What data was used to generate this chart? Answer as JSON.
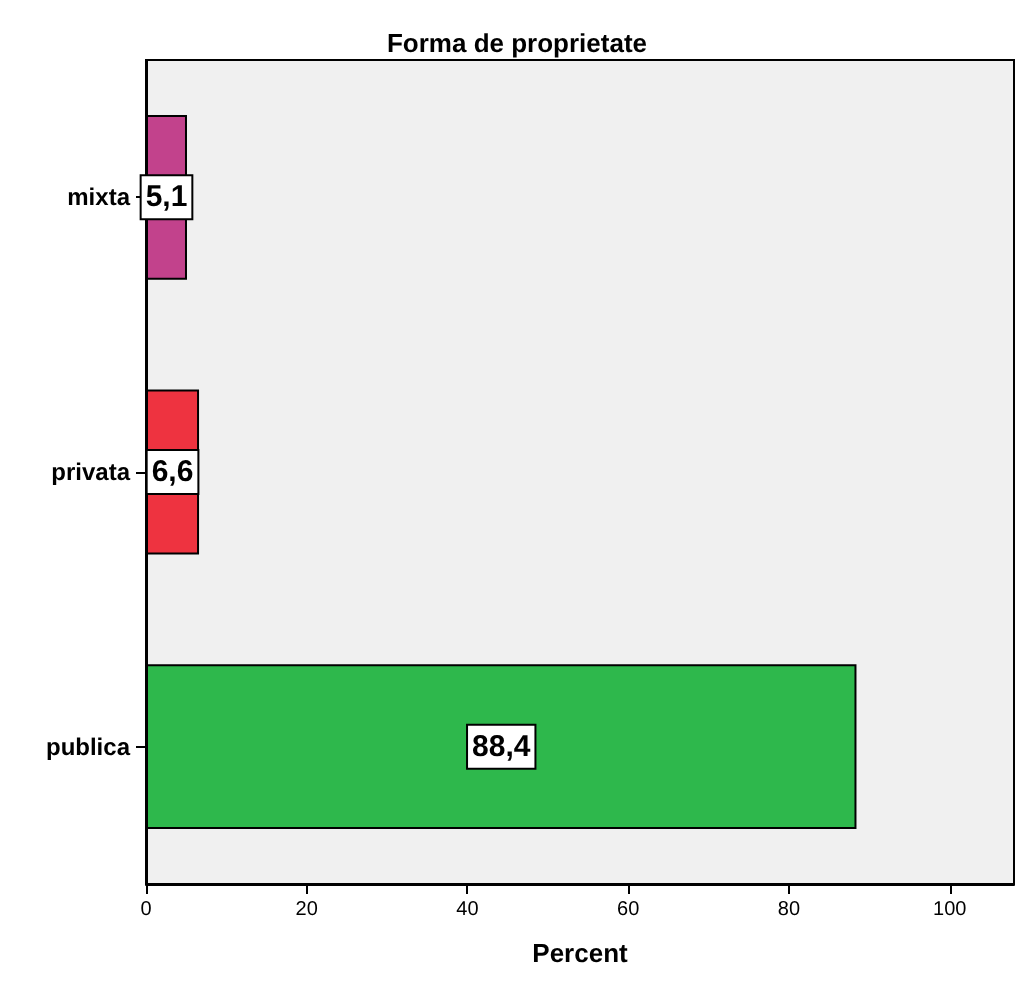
{
  "chart_data": {
    "type": "bar",
    "orientation": "horizontal",
    "title": "Forma de proprietate",
    "xlabel": "Percent",
    "categories": [
      "mixta",
      "privata",
      "publica"
    ],
    "values": [
      5.1,
      6.6,
      88.4
    ],
    "colors": [
      "#c2428c",
      "#ee3340",
      "#2eb84c"
    ],
    "value_labels": [
      "5,1",
      "6,6",
      "88,4"
    ],
    "xlim": [
      0,
      108
    ],
    "xticks": [
      0,
      20,
      40,
      60,
      80,
      100
    ],
    "grid": false
  }
}
